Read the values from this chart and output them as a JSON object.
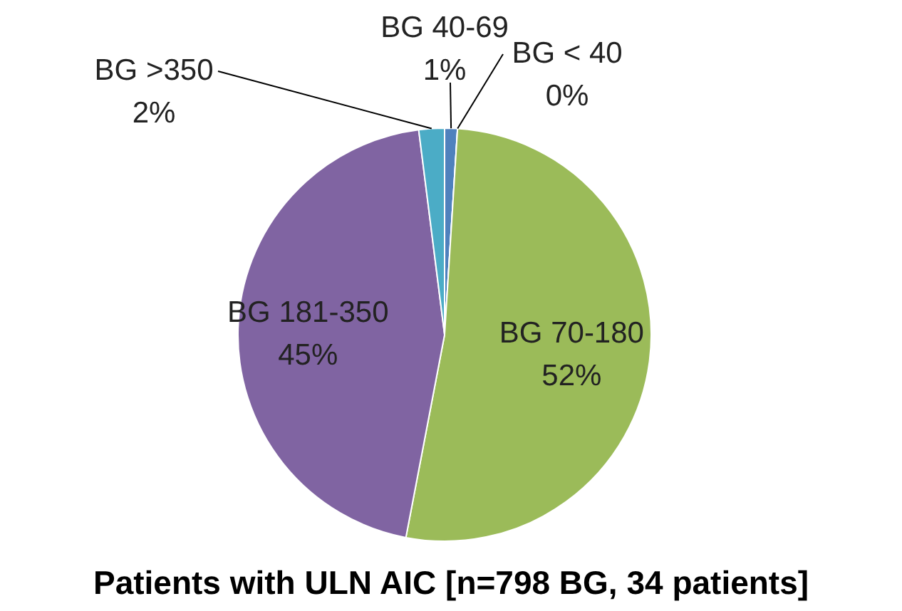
{
  "chart_data": {
    "type": "pie",
    "title": "Patients with ULN AIC [n=798 BG, 34 patients]",
    "categories": [
      "BG 40-69",
      "BG < 40",
      "BG 70-180",
      "BG 181-350",
      "BG >350"
    ],
    "values": [
      1,
      0,
      52,
      45,
      2
    ],
    "value_labels": [
      "1%",
      "0%",
      "52%",
      "45%",
      "2%"
    ],
    "colors": [
      "#4f81bd",
      "#c0504d",
      "#9bbb59",
      "#8064a2",
      "#4bacc6"
    ]
  }
}
